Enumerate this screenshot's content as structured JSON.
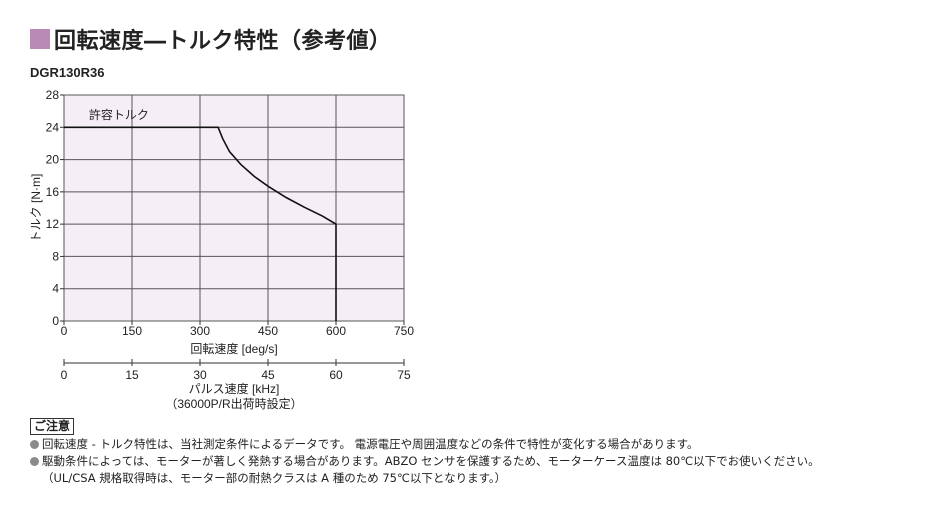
{
  "title": "回転速度―トルク特性（参考値）",
  "model": "DGR130R36",
  "chart_data": {
    "type": "line",
    "ylabel": "トルク [N·m]",
    "xlabel": "回転速度 [deg/s]",
    "secondary_xlabel": "パルス速度 [kHz]",
    "secondary_xlabel_note": "（36000P/R出荷時設定）",
    "xlim": [
      0,
      750
    ],
    "ylim": [
      0,
      28
    ],
    "x_ticks": [
      0,
      150,
      300,
      450,
      600,
      750
    ],
    "y_ticks": [
      0,
      4,
      8,
      12,
      16,
      20,
      24,
      28
    ],
    "secondary_x_ticks": [
      0,
      15,
      30,
      45,
      60,
      75
    ],
    "grid": true,
    "series": [
      {
        "name": "許容トルク",
        "x": [
          0,
          340,
          350,
          365,
          390,
          420,
          450,
          490,
          530,
          570,
          600,
          600
        ],
        "y": [
          24,
          24,
          22.6,
          21.0,
          19.4,
          17.9,
          16.7,
          15.3,
          14.1,
          13.0,
          12,
          0
        ]
      }
    ],
    "colors": {
      "plot_background": "#f6eef6",
      "grid": "#555555",
      "line": "#111111"
    }
  },
  "notes": {
    "heading": "ご注意",
    "items": [
      "回転速度 - トルク特性は、当社測定条件によるデータです。 電源電圧や周囲温度などの条件で特性が変化する場合があります。",
      "駆動条件によっては、モーターが著しく発熱する場合があります。ABZO センサを保護するため、モーターケース温度は 80℃以下でお使いください。"
    ],
    "sub_note": "（UL/CSA 規格取得時は、モーター部の耐熱クラスは A 種のため 75℃以下となります。）"
  }
}
